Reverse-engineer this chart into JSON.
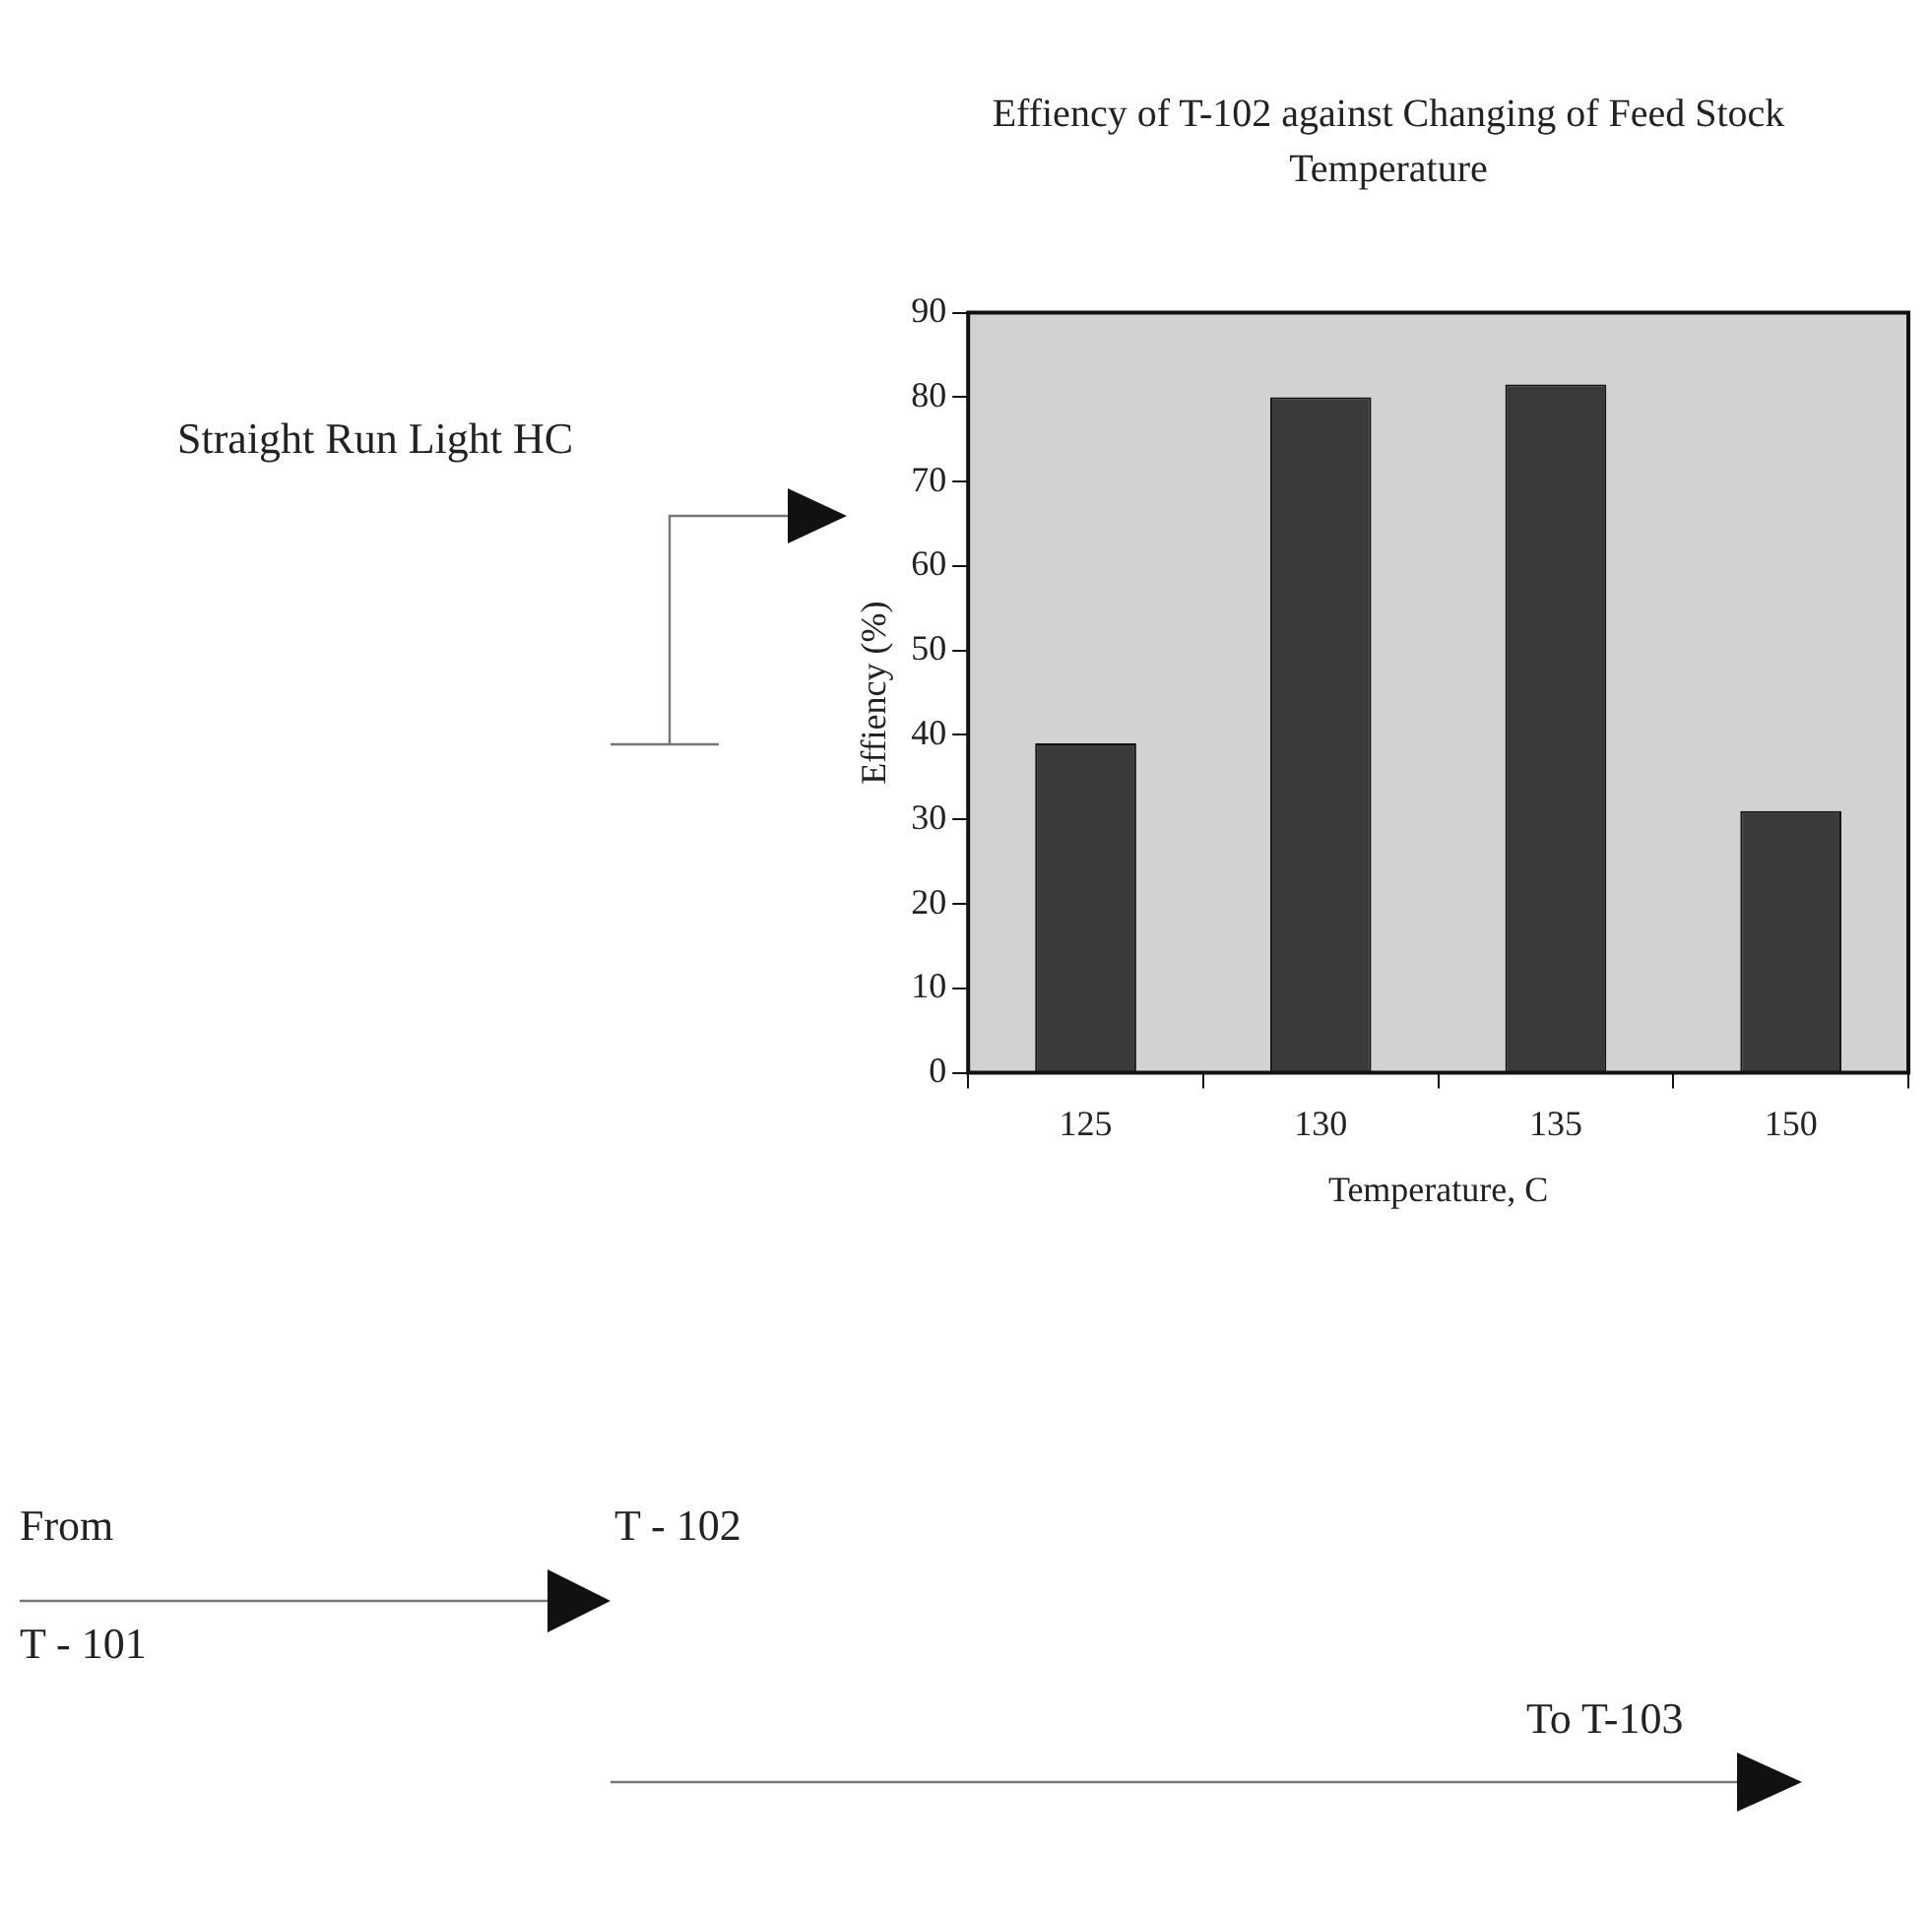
{
  "chart_data": {
    "type": "bar",
    "title": "Effiency of T-102 against Changing of Feed Stock Temperature",
    "xlabel": "Temperature, C",
    "ylabel": "Effiency (%)",
    "categories": [
      "125",
      "130",
      "135",
      "150"
    ],
    "values": [
      39,
      80,
      81.5,
      31
    ],
    "color": "#3a3a3a",
    "ylim": [
      0,
      90
    ],
    "yticks": [
      0,
      10,
      20,
      30,
      40,
      50,
      60,
      70,
      80,
      90
    ],
    "grid": false,
    "legend": false,
    "annotations": [
      "Straight Run Light HC",
      "From",
      "T - 101",
      "T - 102",
      "To T-103"
    ]
  }
}
